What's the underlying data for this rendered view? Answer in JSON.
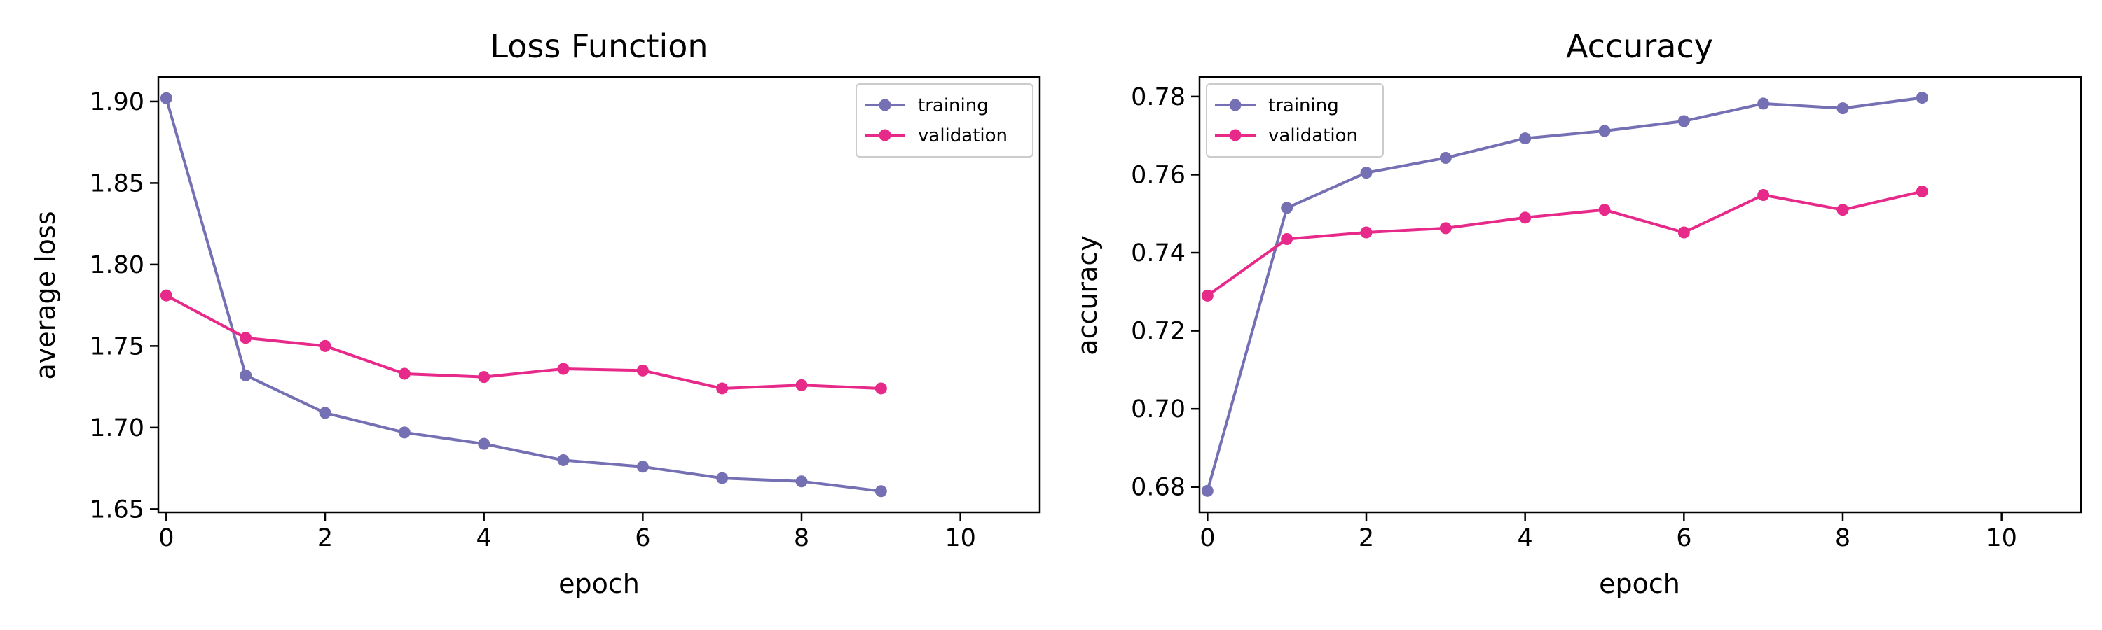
{
  "colors": {
    "training": "#7570b3",
    "validation": "#e7298a"
  },
  "chart_data": [
    {
      "type": "line",
      "title": "Loss Function",
      "xlabel": "epoch",
      "ylabel": "average loss",
      "xlim": [
        -0.1,
        11
      ],
      "ylim": [
        1.648,
        1.915
      ],
      "xticks": [
        0,
        2,
        4,
        6,
        8,
        10
      ],
      "xtick_labels": [
        "0",
        "2",
        "4",
        "6",
        "8",
        "10"
      ],
      "yticks": [
        1.65,
        1.7,
        1.75,
        1.8,
        1.85,
        1.9
      ],
      "ytick_labels": [
        "1.65",
        "1.70",
        "1.75",
        "1.80",
        "1.85",
        "1.90"
      ],
      "legend_position": "top-right",
      "grid": false,
      "x": [
        0,
        1,
        2,
        3,
        4,
        5,
        6,
        7,
        8,
        9
      ],
      "series": [
        {
          "name": "training",
          "color": "#7570b3",
          "values": [
            1.902,
            1.732,
            1.709,
            1.697,
            1.69,
            1.68,
            1.676,
            1.669,
            1.667,
            1.661
          ]
        },
        {
          "name": "validation",
          "color": "#e7298a",
          "values": [
            1.781,
            1.755,
            1.75,
            1.733,
            1.731,
            1.736,
            1.735,
            1.724,
            1.726,
            1.724
          ]
        }
      ]
    },
    {
      "type": "line",
      "title": "Accuracy",
      "xlabel": "epoch",
      "ylabel": "accuracy",
      "xlim": [
        -0.1,
        11
      ],
      "ylim": [
        0.6735,
        0.785
      ],
      "xticks": [
        0,
        2,
        4,
        6,
        8,
        10
      ],
      "xtick_labels": [
        "0",
        "2",
        "4",
        "6",
        "8",
        "10"
      ],
      "yticks": [
        0.68,
        0.7,
        0.72,
        0.74,
        0.76,
        0.78
      ],
      "ytick_labels": [
        "0.68",
        "0.70",
        "0.72",
        "0.74",
        "0.76",
        "0.78"
      ],
      "legend_position": "top-left",
      "grid": false,
      "x": [
        0,
        1,
        2,
        3,
        4,
        5,
        6,
        7,
        8,
        9
      ],
      "series": [
        {
          "name": "training",
          "color": "#7570b3",
          "values": [
            0.679,
            0.7515,
            0.7605,
            0.7643,
            0.7693,
            0.7712,
            0.7737,
            0.7782,
            0.777,
            0.7797
          ]
        },
        {
          "name": "validation",
          "color": "#e7298a",
          "values": [
            0.729,
            0.7435,
            0.7452,
            0.7463,
            0.749,
            0.751,
            0.7452,
            0.7548,
            0.751,
            0.7557
          ]
        }
      ]
    }
  ]
}
